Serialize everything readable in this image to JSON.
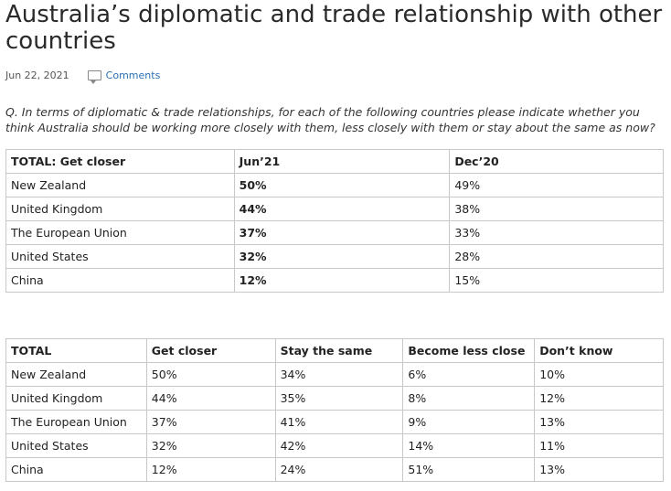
{
  "article": {
    "title": "Australia’s diplomatic and trade relationship with other countries",
    "date": "Jun 22, 2021",
    "comments_label": "Comments",
    "question": "Q. In terms of diplomatic & trade relationships, for each of the following countries please indicate whether you think Australia should be working more closely with them, less closely with them or stay about the same as now?"
  },
  "table1": {
    "headers": [
      "TOTAL: Get closer",
      "Jun’21",
      "Dec’20"
    ],
    "rows": [
      [
        "New Zealand",
        "50%",
        "49%"
      ],
      [
        "United Kingdom",
        "44%",
        "38%"
      ],
      [
        "The European Union",
        "37%",
        "33%"
      ],
      [
        "United States",
        "32%",
        "28%"
      ],
      [
        "China",
        "12%",
        "15%"
      ]
    ]
  },
  "table2": {
    "headers": [
      "TOTAL",
      "Get closer",
      "Stay the same",
      "Become less close",
      "Don’t know"
    ],
    "rows": [
      [
        "New Zealand",
        "50%",
        "34%",
        "6%",
        "10%"
      ],
      [
        "United Kingdom",
        "44%",
        "35%",
        "8%",
        "12%"
      ],
      [
        "The European Union",
        "37%",
        "41%",
        "9%",
        "13%"
      ],
      [
        "United States",
        "32%",
        "42%",
        "14%",
        "11%"
      ],
      [
        "China",
        "12%",
        "24%",
        "51%",
        "13%"
      ]
    ]
  }
}
